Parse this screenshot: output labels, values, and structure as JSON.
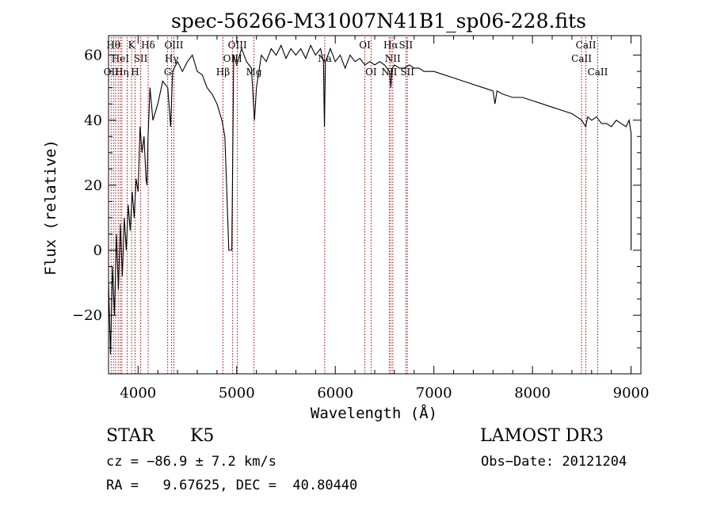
{
  "chart_data": {
    "type": "line",
    "title": "spec-56266-M31007N41B1_sp06-228.fits",
    "xlabel": "Wavelength (Å)",
    "ylabel": "Flux (relative)",
    "xlim": [
      3700,
      9100
    ],
    "ylim": [
      -38,
      66
    ],
    "xticks": [
      4000,
      5000,
      6000,
      7000,
      8000,
      9000
    ],
    "yticks": [
      -20,
      0,
      20,
      40,
      60
    ],
    "xtick_labels": [
      "4000",
      "5000",
      "6000",
      "7000",
      "8000",
      "9000"
    ],
    "ytick_labels": [
      "−20",
      "0",
      "20",
      "40",
      "60"
    ],
    "series": [
      {
        "color": "#000000",
        "points": [
          [
            3700,
            -10
          ],
          [
            3720,
            -32
          ],
          [
            3740,
            -5
          ],
          [
            3760,
            -20
          ],
          [
            3780,
            5
          ],
          [
            3800,
            -12
          ],
          [
            3820,
            8
          ],
          [
            3840,
            -8
          ],
          [
            3860,
            10
          ],
          [
            3880,
            0
          ],
          [
            3900,
            14
          ],
          [
            3920,
            6
          ],
          [
            3940,
            18
          ],
          [
            3960,
            10
          ],
          [
            3980,
            22
          ],
          [
            4000,
            18
          ],
          [
            4020,
            38
          ],
          [
            4040,
            30
          ],
          [
            4060,
            35
          ],
          [
            4080,
            22
          ],
          [
            4090,
            20
          ],
          [
            4100,
            34
          ],
          [
            4120,
            50
          ],
          [
            4150,
            40
          ],
          [
            4200,
            45
          ],
          [
            4250,
            52
          ],
          [
            4300,
            50
          ],
          [
            4330,
            38
          ],
          [
            4350,
            55
          ],
          [
            4400,
            58
          ],
          [
            4450,
            55
          ],
          [
            4500,
            58
          ],
          [
            4550,
            60
          ],
          [
            4600,
            55
          ],
          [
            4650,
            54
          ],
          [
            4700,
            50
          ],
          [
            4750,
            48
          ],
          [
            4800,
            45
          ],
          [
            4850,
            40
          ],
          [
            4880,
            35
          ],
          [
            4900,
            18
          ],
          [
            4920,
            0
          ],
          [
            4950,
            0
          ],
          [
            4970,
            60
          ],
          [
            5000,
            57
          ],
          [
            5050,
            62
          ],
          [
            5100,
            58
          ],
          [
            5150,
            56
          ],
          [
            5180,
            40
          ],
          [
            5200,
            50
          ],
          [
            5250,
            60
          ],
          [
            5300,
            58
          ],
          [
            5350,
            62
          ],
          [
            5400,
            60
          ],
          [
            5450,
            63
          ],
          [
            5500,
            59
          ],
          [
            5550,
            62
          ],
          [
            5600,
            60
          ],
          [
            5650,
            62
          ],
          [
            5700,
            59
          ],
          [
            5750,
            63
          ],
          [
            5800,
            60
          ],
          [
            5850,
            62
          ],
          [
            5880,
            58
          ],
          [
            5890,
            38
          ],
          [
            5900,
            58
          ],
          [
            5950,
            62
          ],
          [
            6000,
            58
          ],
          [
            6050,
            60
          ],
          [
            6100,
            56
          ],
          [
            6150,
            60
          ],
          [
            6200,
            58
          ],
          [
            6250,
            59
          ],
          [
            6300,
            57
          ],
          [
            6350,
            58
          ],
          [
            6400,
            57
          ],
          [
            6450,
            58
          ],
          [
            6500,
            57
          ],
          [
            6550,
            55
          ],
          [
            6563,
            50
          ],
          [
            6580,
            56
          ],
          [
            6600,
            57
          ],
          [
            6650,
            56
          ],
          [
            6700,
            56
          ],
          [
            6750,
            57
          ],
          [
            6800,
            56
          ],
          [
            6850,
            56
          ],
          [
            6900,
            55
          ],
          [
            6950,
            55
          ],
          [
            7000,
            55
          ],
          [
            7100,
            54
          ],
          [
            7200,
            53
          ],
          [
            7300,
            52
          ],
          [
            7400,
            51
          ],
          [
            7500,
            50
          ],
          [
            7600,
            49
          ],
          [
            7620,
            45
          ],
          [
            7640,
            49
          ],
          [
            7700,
            48
          ],
          [
            7800,
            47
          ],
          [
            7900,
            47
          ],
          [
            8000,
            46
          ],
          [
            8100,
            45
          ],
          [
            8200,
            44
          ],
          [
            8300,
            43
          ],
          [
            8400,
            42
          ],
          [
            8450,
            41
          ],
          [
            8500,
            40
          ],
          [
            8540,
            38
          ],
          [
            8560,
            41
          ],
          [
            8600,
            40
          ],
          [
            8650,
            41
          ],
          [
            8700,
            39
          ],
          [
            8750,
            39
          ],
          [
            8800,
            38
          ],
          [
            8850,
            40
          ],
          [
            8900,
            39
          ],
          [
            8950,
            38
          ],
          [
            8980,
            40
          ],
          [
            9000,
            36
          ],
          [
            9000,
            0
          ]
        ]
      }
    ],
    "line_markers": [
      {
        "wavelength": 3727,
        "label": "OII",
        "row": 3
      },
      {
        "wavelength": 3750,
        "label": "Hθ",
        "row": 1
      },
      {
        "wavelength": 3771,
        "label": "",
        "row": 0
      },
      {
        "wavelength": 3798,
        "label": "",
        "row": 0
      },
      {
        "wavelength": 3820,
        "label": "HeI",
        "row": 2
      },
      {
        "wavelength": 3835,
        "label": "Hη",
        "row": 3
      },
      {
        "wavelength": 3889,
        "label": "",
        "row": 0
      },
      {
        "wavelength": 3934,
        "label": "K",
        "row": 1
      },
      {
        "wavelength": 3969,
        "label": "H",
        "row": 3
      },
      {
        "wavelength": 4026,
        "label": "SII",
        "row": 2
      },
      {
        "wavelength": 4102,
        "label": "Hδ",
        "row": 1
      },
      {
        "wavelength": 4300,
        "label": "G",
        "row": 3
      },
      {
        "wavelength": 4340,
        "label": "Hγ",
        "row": 2
      },
      {
        "wavelength": 4363,
        "label": "OIII",
        "row": 1
      },
      {
        "wavelength": 4861,
        "label": "Hβ",
        "row": 3
      },
      {
        "wavelength": 4959,
        "label": "OIII",
        "row": 2
      },
      {
        "wavelength": 5007,
        "label": "OIII",
        "row": 1
      },
      {
        "wavelength": 5175,
        "label": "Mg",
        "row": 3
      },
      {
        "wavelength": 5893,
        "label": "Na",
        "row": 2
      },
      {
        "wavelength": 6300,
        "label": "OI",
        "row": 1
      },
      {
        "wavelength": 6363,
        "label": "OI",
        "row": 3
      },
      {
        "wavelength": 6548,
        "label": "NII",
        "row": 3
      },
      {
        "wavelength": 6563,
        "label": "Hα",
        "row": 1
      },
      {
        "wavelength": 6583,
        "label": "NII",
        "row": 2
      },
      {
        "wavelength": 6716,
        "label": "SII",
        "row": 1
      },
      {
        "wavelength": 6731,
        "label": "SII",
        "row": 3
      },
      {
        "wavelength": 8498,
        "label": "CaII",
        "row": 2
      },
      {
        "wavelength": 8542,
        "label": "CaII",
        "row": 1
      },
      {
        "wavelength": 8662,
        "label": "CaII",
        "row": 3
      }
    ]
  },
  "info": {
    "class_label": "STAR",
    "subclass": "K5",
    "survey": "LAMOST DR3",
    "redshift_line": "cz = −86.9 ± 7.2 km/s",
    "obs_date_line": "Obs−Date: 20121204",
    "coords_line": "RA =   9.67625, DEC =  40.80440"
  }
}
